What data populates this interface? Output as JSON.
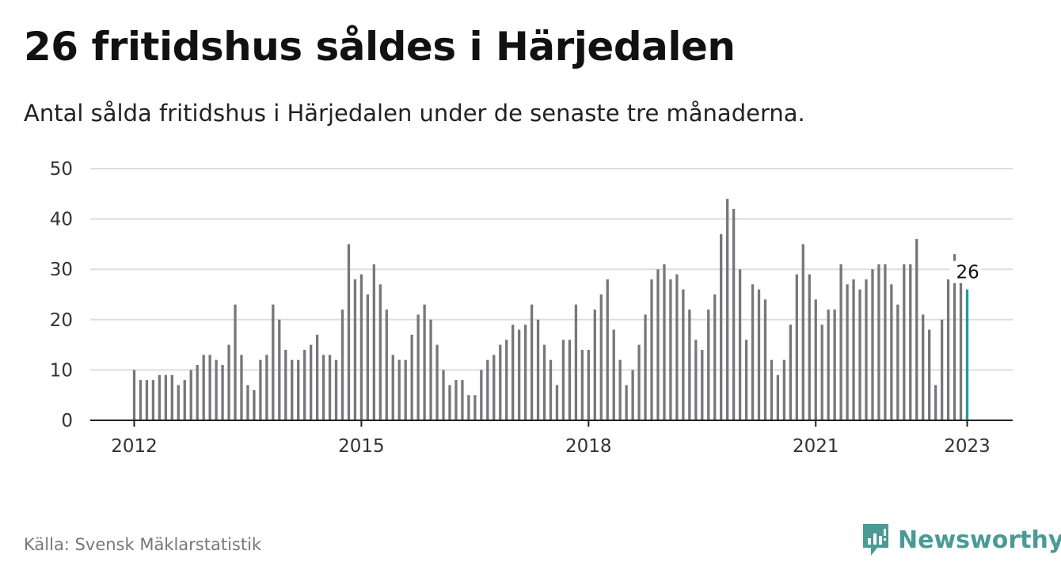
{
  "title": "26 fritidshus såldes i Härjedalen",
  "subtitle": "Antal sålda fritidshus i Härjedalen under de senaste tre månaderna.",
  "source": "Källa: Svensk Mäklarstatistik",
  "brand": "Newsworthy",
  "colors": {
    "bar": "#77767b",
    "highlight": "#1a9e9a",
    "grid": "#dddddd",
    "axis": "#222222",
    "brand": "#4a9a96"
  },
  "chart_data": {
    "type": "bar",
    "x_start": "2012-01",
    "x_end": "2023-01",
    "xticks": [
      "2012",
      "2015",
      "2018",
      "2021",
      "2023"
    ],
    "yticks": [
      0,
      10,
      20,
      30,
      40,
      50
    ],
    "ylim": [
      0,
      50
    ],
    "grid": true,
    "highlight_label": "26",
    "values": [
      10,
      8,
      8,
      8,
      9,
      9,
      9,
      7,
      8,
      10,
      11,
      13,
      13,
      12,
      11,
      15,
      23,
      13,
      7,
      6,
      12,
      13,
      23,
      20,
      14,
      12,
      12,
      14,
      15,
      17,
      13,
      13,
      12,
      22,
      35,
      28,
      29,
      25,
      31,
      27,
      22,
      13,
      12,
      12,
      17,
      21,
      23,
      20,
      15,
      10,
      7,
      8,
      8,
      5,
      5,
      10,
      12,
      13,
      15,
      16,
      19,
      18,
      19,
      23,
      20,
      15,
      12,
      7,
      16,
      16,
      23,
      14,
      14,
      22,
      25,
      28,
      18,
      12,
      7,
      10,
      15,
      21,
      28,
      30,
      31,
      28,
      29,
      26,
      22,
      16,
      14,
      22,
      25,
      37,
      44,
      42,
      30,
      16,
      27,
      26,
      24,
      12,
      9,
      12,
      19,
      29,
      35,
      29,
      24,
      19,
      22,
      22,
      31,
      27,
      28,
      26,
      28,
      30,
      31,
      31,
      27,
      23,
      31,
      31,
      36,
      21,
      18,
      7,
      20,
      28,
      33,
      28,
      26
    ]
  }
}
